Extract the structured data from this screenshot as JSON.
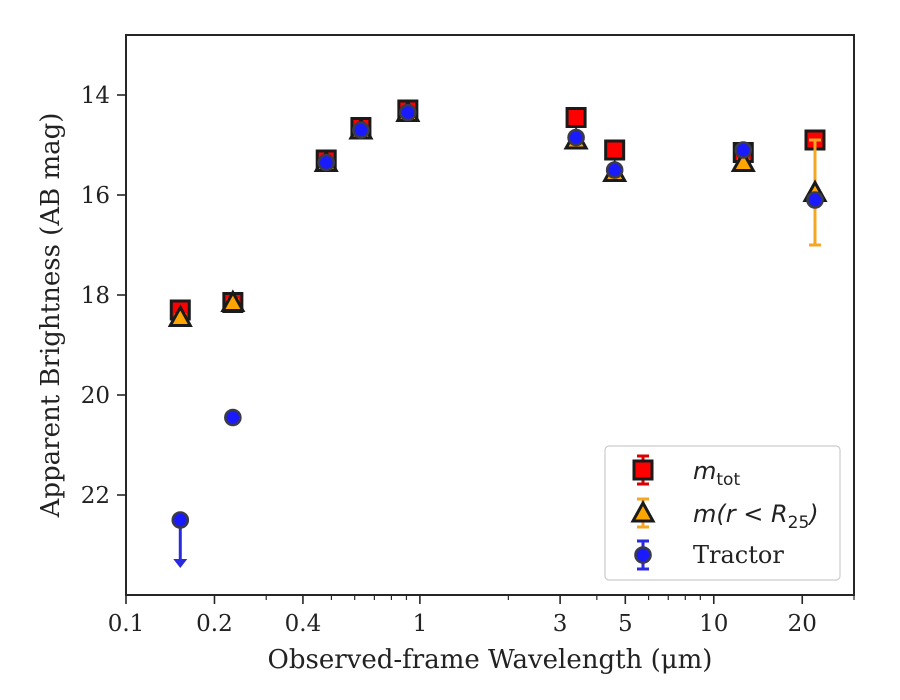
{
  "chart_data": {
    "type": "scatter",
    "xlabel": "Observed-frame Wavelength (μm)",
    "ylabel": "Apparent Brightness (AB mag)",
    "xscale": "log",
    "xlim": [
      0.1,
      30
    ],
    "ylim": [
      24,
      12.8
    ],
    "y_inverted": true,
    "xticks": [
      0.1,
      0.2,
      0.4,
      1,
      3,
      5,
      10,
      20
    ],
    "xtick_labels": [
      "0.1",
      "0.2",
      "0.4",
      "1",
      "3",
      "5",
      "10",
      "20"
    ],
    "yticks": [
      14,
      16,
      18,
      20,
      22
    ],
    "ytick_labels": [
      "14",
      "16",
      "18",
      "20",
      "22"
    ],
    "legend_position": "lower-right",
    "series": [
      {
        "legend_main": "m",
        "legend_sub": "tot",
        "marker": "square",
        "color": "#ff0000",
        "error_color": "#dd0000",
        "points": [
          {
            "x": 0.153,
            "y": 18.3,
            "yerr": 0.1
          },
          {
            "x": 0.231,
            "y": 18.15,
            "yerr": 0.08
          },
          {
            "x": 0.48,
            "y": 15.3,
            "yerr": 0.05
          },
          {
            "x": 0.63,
            "y": 14.65,
            "yerr": 0.1
          },
          {
            "x": 0.91,
            "y": 14.3,
            "yerr": 0.05
          },
          {
            "x": 3.4,
            "y": 14.45,
            "yerr": 0.05
          },
          {
            "x": 4.6,
            "y": 15.1,
            "yerr": 0.05
          },
          {
            "x": 12.6,
            "y": 15.15,
            "yerr": 0.05
          },
          {
            "x": 22.1,
            "y": 14.9,
            "yerr": 0.05
          }
        ]
      },
      {
        "legend_main": "m(r < R",
        "legend_sub": "25",
        "legend_end": ")",
        "marker": "triangle",
        "color": "#ffa500",
        "error_color": "#f5a623",
        "points": [
          {
            "x": 0.153,
            "y": 18.45,
            "yerr": 0.05
          },
          {
            "x": 0.231,
            "y": 18.15,
            "yerr": 0.05
          },
          {
            "x": 0.48,
            "y": 15.35,
            "yerr": 0.05
          },
          {
            "x": 0.63,
            "y": 14.7,
            "yerr": 0.05
          },
          {
            "x": 0.91,
            "y": 14.35,
            "yerr": 0.05
          },
          {
            "x": 3.4,
            "y": 14.9,
            "yerr": 0.05
          },
          {
            "x": 4.6,
            "y": 15.55,
            "yerr": 0.05
          },
          {
            "x": 12.6,
            "y": 15.35,
            "yerr": 0.05
          },
          {
            "x": 22.1,
            "y": 15.95,
            "yerr": 1.05
          }
        ]
      },
      {
        "legend_main": "Tractor",
        "marker": "circle",
        "color": "#1a1aff",
        "error_color": "#2a2ae0",
        "points": [
          {
            "x": 0.153,
            "y": 22.5,
            "yerr": 0.05,
            "upper_limit": true
          },
          {
            "x": 0.231,
            "y": 20.45,
            "yerr": 0.05
          },
          {
            "x": 0.48,
            "y": 15.35,
            "yerr": 0.05
          },
          {
            "x": 0.63,
            "y": 14.7,
            "yerr": 0.05
          },
          {
            "x": 0.91,
            "y": 14.35,
            "yerr": 0.05
          },
          {
            "x": 3.4,
            "y": 14.85,
            "yerr": 0.05
          },
          {
            "x": 4.6,
            "y": 15.5,
            "yerr": 0.05
          },
          {
            "x": 12.6,
            "y": 15.1,
            "yerr": 0.05
          },
          {
            "x": 22.1,
            "y": 16.1,
            "yerr": 0.05
          }
        ]
      }
    ]
  }
}
